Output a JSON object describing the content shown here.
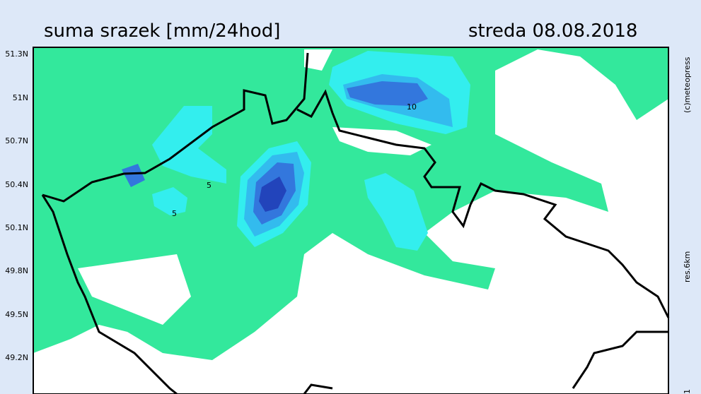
{
  "header": {
    "title": "suma srazek [mm/24hod]",
    "date": "streda 08.08.2018"
  },
  "lat_labels": [
    "51.3N",
    "51N",
    "50.7N",
    "50.4N",
    "50.1N",
    "49.8N",
    "49.5N",
    "49.2N"
  ],
  "contour_labels": [
    "10",
    "5",
    "5"
  ],
  "credits": {
    "copyright": "(c)meteopress",
    "resolution": "res.6km",
    "page": "1"
  }
}
